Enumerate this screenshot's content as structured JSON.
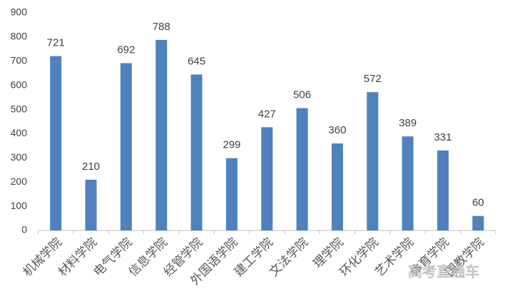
{
  "chart_data": {
    "type": "bar",
    "categories": [
      "机械学院",
      "材料学院",
      "电气学院",
      "信息学院",
      "经管学院",
      "外国语学院",
      "建工学院",
      "文法学院",
      "理学院",
      "环化学院",
      "艺术学院",
      "体育学院",
      "国教学院"
    ],
    "values": [
      721,
      210,
      692,
      788,
      645,
      299,
      427,
      506,
      360,
      572,
      389,
      331,
      60
    ],
    "color": "#4f81bd",
    "ylim": [
      0,
      900
    ],
    "yticks": [
      0,
      100,
      200,
      300,
      400,
      500,
      600,
      700,
      800,
      900
    ],
    "grid": false
  },
  "watermark": "高考直通车"
}
